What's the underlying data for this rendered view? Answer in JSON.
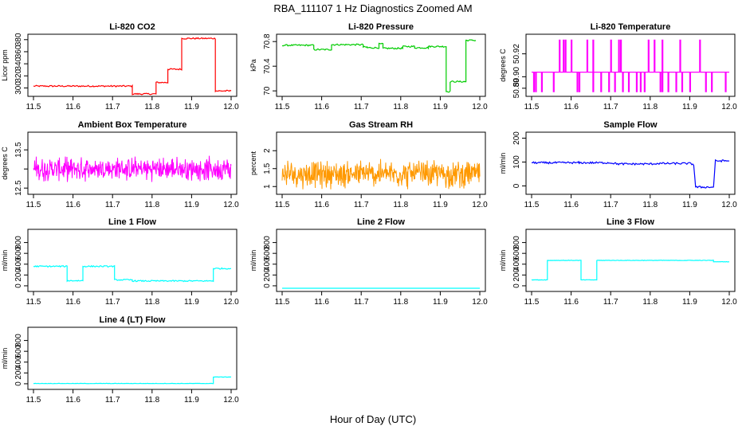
{
  "figure": {
    "title": "RBA_111107  1 Hz Diagnostics Zoomed AM",
    "xlabel": "Hour of Day (UTC)"
  },
  "chart_data": [
    {
      "id": "co2",
      "type": "line",
      "title": "Li-820 CO2",
      "ylabel": "Licor ppm",
      "color": "#ff0000",
      "xlim": [
        11.5,
        12.0
      ],
      "ylim": [
        290,
        385
      ],
      "xticks": [
        "11.5",
        "11.6",
        "11.7",
        "11.8",
        "11.9",
        "12.0"
      ],
      "yticks": [
        300,
        320,
        340,
        360,
        380
      ],
      "series": [
        {
          "x": [
            11.5,
            11.75,
            11.75,
            11.81,
            11.81,
            11.84,
            11.84,
            11.875,
            11.875,
            11.96,
            11.96,
            12.0
          ],
          "y": [
            303,
            303,
            290,
            290,
            309,
            309,
            331,
            331,
            382,
            382,
            295,
            295
          ],
          "noise": 1.2
        }
      ]
    },
    {
      "id": "pressure",
      "type": "line",
      "title": "Li-820 Pressure",
      "ylabel": "kPa",
      "color": "#00cc00",
      "xlim": [
        11.5,
        12.0
      ],
      "ylim": [
        69.95,
        70.88
      ],
      "xticks": [
        "11.5",
        "11.6",
        "11.7",
        "11.8",
        "11.9",
        "12.0"
      ],
      "yticks": [
        70.0,
        70.4,
        70.8
      ],
      "series": [
        {
          "x": [
            11.5,
            11.58,
            11.58,
            11.625,
            11.625,
            11.705,
            11.705,
            11.715,
            11.715,
            11.745,
            11.745,
            11.755,
            11.755,
            11.805,
            11.805,
            11.835,
            11.835,
            11.87,
            11.87,
            11.915,
            11.915,
            11.925,
            11.925,
            11.96,
            11.96,
            11.965,
            11.965,
            11.99
          ],
          "y": [
            70.74,
            70.74,
            70.67,
            70.67,
            70.75,
            70.75,
            70.71,
            70.71,
            70.7,
            70.7,
            70.76,
            70.76,
            70.69,
            70.69,
            70.72,
            70.72,
            70.7,
            70.7,
            70.72,
            70.72,
            69.99,
            69.99,
            70.15,
            70.15,
            70.15,
            70.15,
            70.82,
            70.82
          ],
          "noise": 0.012
        }
      ]
    },
    {
      "id": "licor_temp",
      "type": "line",
      "title": "Li-820 Temperature",
      "ylabel": "degrees C",
      "color": "#ff00ff",
      "xlim": [
        11.5,
        12.0
      ],
      "ylim": [
        50.885,
        50.935
      ],
      "xticks": [
        "11.5",
        "11.6",
        "11.7",
        "11.8",
        "11.9",
        "12.0"
      ],
      "yticks": [
        50.89,
        50.9,
        50.92
      ],
      "ytick_labels": [
        "50.89",
        "50.90",
        "50.92"
      ],
      "baseline": 50.904,
      "up": 50.932,
      "down": 50.887,
      "spikes_up": [
        11.57,
        11.58,
        11.585,
        11.6,
        11.64,
        11.655,
        11.7,
        11.72,
        11.725,
        11.795,
        11.81,
        11.83,
        11.875,
        11.925
      ],
      "spikes_down": [
        11.505,
        11.51,
        11.51,
        11.525,
        11.555,
        11.615,
        11.62,
        11.655,
        11.675,
        11.695,
        11.71,
        11.73,
        11.745,
        11.765,
        11.775,
        11.785,
        11.825,
        11.83,
        11.845,
        11.865,
        11.88,
        11.9,
        11.94,
        11.955,
        11.99
      ]
    },
    {
      "id": "box_temp",
      "type": "line",
      "title": "Ambient Box Temperature",
      "ylabel": "degrees C",
      "color": "#ff00ff",
      "xlim": [
        11.5,
        12.0
      ],
      "ylim": [
        12.4,
        13.9
      ],
      "xticks": [
        "11.5",
        "11.6",
        "11.7",
        "11.8",
        "11.9",
        "12.0"
      ],
      "yticks": [
        12.5,
        13.0,
        13.5
      ],
      "ytick_labels": [
        "12.5",
        "",
        "13.5"
      ],
      "center": 13.0,
      "spread": 0.55
    },
    {
      "id": "rh",
      "type": "line",
      "title": "Gas Stream RH",
      "ylabel": "percent",
      "color": "#ff9900",
      "xlim": [
        11.5,
        12.0
      ],
      "ylim": [
        0.85,
        2.45
      ],
      "xticks": [
        "11.5",
        "11.6",
        "11.7",
        "11.8",
        "11.9",
        "12.0"
      ],
      "yticks": [
        1.0,
        1.5,
        2.0
      ],
      "center": 1.35,
      "spread": 0.7
    },
    {
      "id": "sample_flow",
      "type": "line",
      "title": "Sample Flow",
      "ylabel": "ml/min",
      "color": "#0000ff",
      "xlim": [
        11.5,
        12.0
      ],
      "ylim": [
        -25,
        215
      ],
      "xticks": [
        "11.5",
        "11.6",
        "11.7",
        "11.8",
        "11.9",
        "12.0"
      ],
      "yticks": [
        0,
        100,
        200
      ],
      "series": [
        {
          "x": [
            11.5,
            11.62,
            11.62,
            11.7,
            11.72,
            11.8,
            11.82,
            11.9,
            11.91,
            11.915,
            11.915,
            11.96,
            11.96,
            11.965,
            11.965,
            12.0
          ],
          "y": [
            97,
            97,
            97,
            97,
            92,
            92,
            94,
            94,
            90,
            -5,
            -5,
            -5,
            -5,
            105,
            105,
            105
          ],
          "noise": 4
        }
      ]
    },
    {
      "id": "line1",
      "type": "line",
      "title": "Line 1 Flow",
      "ylabel": "ml/min",
      "color": "#00ffff",
      "xlim": [
        11.5,
        12.0
      ],
      "ylim": [
        -60,
        1000
      ],
      "xticks": [
        "11.5",
        "11.6",
        "11.7",
        "11.8",
        "11.9",
        "12.0"
      ],
      "yticks": [
        0,
        200,
        400,
        600,
        800
      ],
      "series": [
        {
          "x": [
            11.5,
            11.585,
            11.585,
            11.625,
            11.625,
            11.705,
            11.705,
            11.75,
            11.75,
            11.955,
            11.955,
            12.0
          ],
          "y": [
            360,
            360,
            95,
            95,
            360,
            360,
            110,
            110,
            90,
            90,
            320,
            320
          ],
          "noise": 12
        }
      ]
    },
    {
      "id": "line2",
      "type": "line",
      "title": "Line 2 Flow",
      "ylabel": "ml/min",
      "color": "#00ffff",
      "xlim": [
        11.5,
        12.0
      ],
      "ylim": [
        -60,
        1000
      ],
      "xticks": [
        "11.5",
        "11.6",
        "11.7",
        "11.8",
        "11.9",
        "12.0"
      ],
      "yticks": [
        0,
        200,
        400,
        600,
        800
      ],
      "series": [
        {
          "x": [
            11.5,
            12.0
          ],
          "y": [
            -45,
            -45
          ],
          "noise": 0
        }
      ]
    },
    {
      "id": "line3",
      "type": "line",
      "title": "Line 3 Flow",
      "ylabel": "ml/min",
      "color": "#00ffff",
      "xlim": [
        11.5,
        12.0
      ],
      "ylim": [
        -60,
        1000
      ],
      "xticks": [
        "11.5",
        "11.6",
        "11.7",
        "11.8",
        "11.9",
        "12.0"
      ],
      "yticks": [
        0,
        200,
        400,
        600,
        800
      ],
      "series": [
        {
          "x": [
            11.5,
            11.54,
            11.54,
            11.625,
            11.625,
            11.665,
            11.665,
            11.96,
            11.96,
            12.0
          ],
          "y": [
            110,
            110,
            470,
            470,
            110,
            110,
            470,
            470,
            445,
            445
          ],
          "noise": 4
        }
      ]
    },
    {
      "id": "line4",
      "type": "line",
      "title": "Line 4 (LT) Flow",
      "ylabel": "ml/min",
      "color": "#00ffff",
      "xlim": [
        11.5,
        12.0
      ],
      "ylim": [
        -60,
        1000
      ],
      "xticks": [
        "11.5",
        "11.6",
        "11.7",
        "11.8",
        "11.9",
        "12.0"
      ],
      "yticks": [
        0,
        200,
        400,
        600,
        800
      ],
      "series": [
        {
          "x": [
            11.5,
            11.955,
            11.955,
            12.0
          ],
          "y": [
            5,
            5,
            125,
            125
          ],
          "noise": 3
        }
      ]
    }
  ]
}
